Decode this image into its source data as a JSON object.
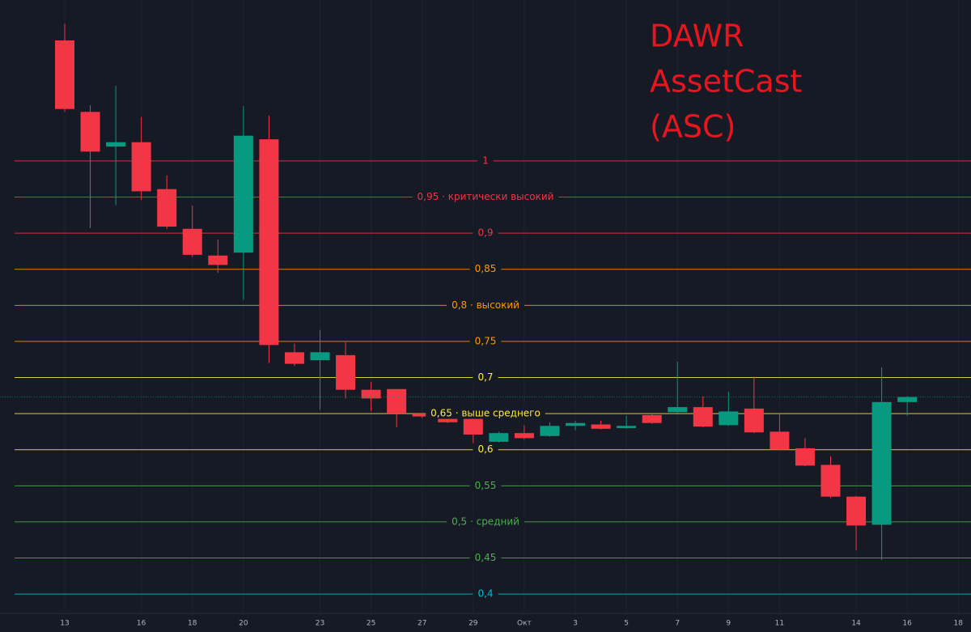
{
  "chart_data": {
    "type": "candlestick",
    "title": [
      "DAWR",
      "AssetCast",
      "(ASC)"
    ],
    "title_color": "#e8141e",
    "categories": [
      "13",
      null,
      null,
      "16",
      null,
      "18",
      null,
      "20",
      null,
      null,
      "23",
      null,
      "25",
      null,
      "27",
      null,
      "29",
      null,
      "Окт",
      null,
      "3",
      null,
      "5",
      null,
      "7",
      null,
      "9",
      null,
      "11",
      null,
      null,
      "14",
      null,
      "16",
      null,
      "18"
    ],
    "open": [
      1.167,
      1.068,
      1.02,
      1.026,
      0.961,
      0.906,
      0.869,
      0.873,
      1.03,
      0.735,
      0.724,
      0.731,
      0.683,
      0.684,
      0.65,
      0.646,
      0.643,
      0.611,
      0.623,
      0.619,
      0.633,
      0.635,
      0.63,
      0.648,
      0.652,
      0.659,
      0.634,
      0.657,
      0.625,
      0.602,
      0.579,
      0.535,
      0.496,
      0.666,
      null,
      null
    ],
    "high": [
      1.19,
      1.077,
      1.104,
      1.061,
      0.98,
      0.938,
      0.891,
      1.076,
      1.063,
      0.747,
      0.766,
      0.749,
      0.694,
      0.684,
      0.651,
      0.653,
      0.656,
      0.625,
      0.634,
      0.638,
      0.64,
      0.64,
      0.647,
      0.65,
      0.722,
      0.674,
      0.68,
      0.701,
      0.649,
      0.616,
      0.591,
      0.536,
      0.714,
      0.674,
      null,
      null
    ],
    "low": [
      1.068,
      0.907,
      0.939,
      0.946,
      0.906,
      0.867,
      0.845,
      0.808,
      0.72,
      0.716,
      0.655,
      0.671,
      0.653,
      0.631,
      0.644,
      0.637,
      0.609,
      0.61,
      0.614,
      0.618,
      0.627,
      0.628,
      0.629,
      0.636,
      0.651,
      0.631,
      0.633,
      0.623,
      0.599,
      0.577,
      0.533,
      0.461,
      0.447,
      0.647,
      null,
      null
    ],
    "close": [
      1.072,
      1.013,
      1.026,
      0.958,
      0.909,
      0.87,
      0.856,
      1.035,
      0.745,
      0.719,
      0.735,
      0.683,
      0.671,
      0.65,
      0.646,
      0.638,
      0.621,
      0.623,
      0.616,
      0.633,
      0.637,
      0.629,
      0.633,
      0.637,
      0.659,
      0.632,
      0.653,
      0.624,
      0.6,
      0.578,
      0.535,
      0.495,
      0.666,
      0.673,
      null,
      null
    ],
    "up_color": "#089981",
    "down_color": "#f23645",
    "ylim": [
      0.371,
      1.223
    ],
    "yticks": [
      {
        "value": 1,
        "label": "1"
      },
      {
        "value": 0.95,
        "label": "0,95 · критически высокий"
      },
      {
        "value": 0.9,
        "label": "0,9"
      },
      {
        "value": 0.85,
        "label": "0,85"
      },
      {
        "value": 0.8,
        "label": "0,8 · высокий"
      },
      {
        "value": 0.75,
        "label": "0,75"
      },
      {
        "value": 0.7,
        "label": "0,7"
      },
      {
        "value": 0.65,
        "label": "0,65 · выше среднего"
      },
      {
        "value": 0.6,
        "label": "0,6"
      },
      {
        "value": 0.55,
        "label": "0,55"
      },
      {
        "value": 0.5,
        "label": "0,5 · средний"
      },
      {
        "value": 0.45,
        "label": "0,45"
      },
      {
        "value": 0.4,
        "label": "0,4"
      }
    ],
    "ytick_colors": [
      "#f23645",
      "#f23645",
      "#f23645",
      "#ff9800",
      "#ff9800",
      "#ff9800",
      "#ffeb3b",
      "#ffeb3b",
      "#ffeb3b",
      "#4caf50",
      "#4caf50",
      "#4caf50",
      "#00bcd4"
    ],
    "grid": true
  }
}
